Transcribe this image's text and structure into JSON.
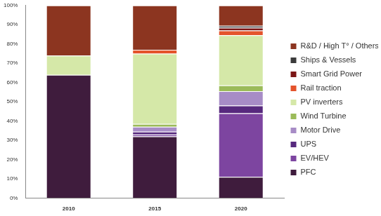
{
  "chart_data": {
    "type": "bar",
    "stacked": true,
    "grid": false,
    "legend": "right",
    "categories": [
      "2010",
      "2015",
      "2020"
    ],
    "ylim": [
      0,
      100
    ],
    "yticks": [
      {
        "value": 0,
        "label": "0%"
      },
      {
        "value": 10,
        "label": "10%"
      },
      {
        "value": 20,
        "label": "20%"
      },
      {
        "value": 30,
        "label": "30%"
      },
      {
        "value": 40,
        "label": "40%"
      },
      {
        "value": 50,
        "label": "50%"
      },
      {
        "value": 60,
        "label": "60%"
      },
      {
        "value": 70,
        "label": "70%"
      },
      {
        "value": 80,
        "label": "80%"
      },
      {
        "value": 90,
        "label": "90%"
      },
      {
        "value": 100,
        "label": "100%"
      }
    ],
    "series": [
      {
        "name": "PFC",
        "color": "#3f1c3d",
        "values": [
          64,
          32,
          11
        ]
      },
      {
        "name": "EV/HEV",
        "color": "#7d45a0",
        "values": [
          0,
          1,
          33
        ]
      },
      {
        "name": "UPS",
        "color": "#57297e",
        "values": [
          0,
          1.5,
          4
        ]
      },
      {
        "name": "Motor Drive",
        "color": "#a78cc6",
        "values": [
          0,
          2.5,
          7.5
        ]
      },
      {
        "name": "Wind Turbine",
        "color": "#9bbb59",
        "values": [
          0,
          1.5,
          3
        ]
      },
      {
        "name": "PV inverters",
        "color": "#d5e8a8",
        "values": [
          10,
          36.5,
          26
        ]
      },
      {
        "name": "Rail traction",
        "color": "#e4532b",
        "values": [
          0,
          2,
          2.5
        ]
      },
      {
        "name": "Smart Grid Power",
        "color": "#7c1616",
        "values": [
          0,
          0,
          1.5
        ]
      },
      {
        "name": "Ships & Vessels",
        "color": "#3b3b3b",
        "values": [
          0,
          0,
          1
        ]
      },
      {
        "name": "R&D / High T° / Others",
        "color": "#8c3520",
        "values": [
          26,
          23,
          10.5
        ]
      }
    ]
  }
}
